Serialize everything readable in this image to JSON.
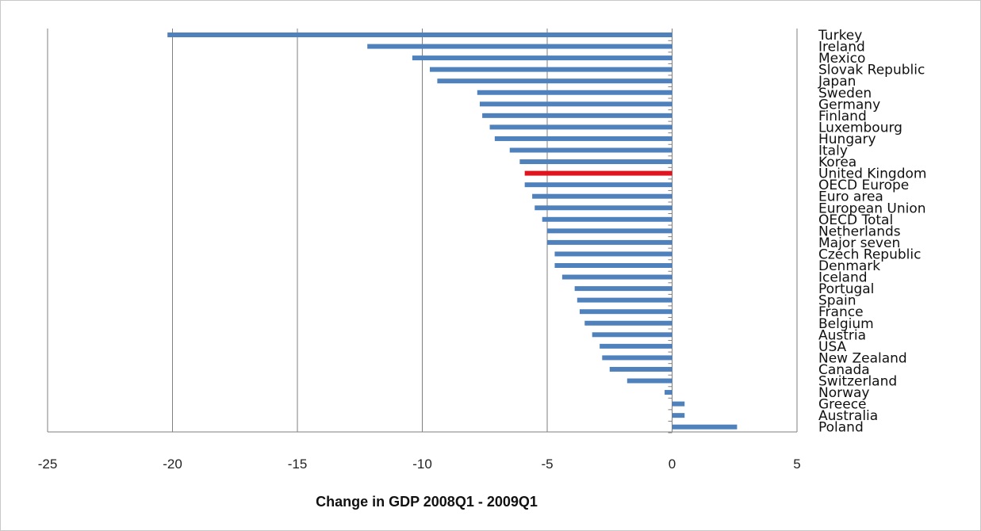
{
  "chart_data": {
    "type": "bar",
    "orientation": "horizontal",
    "title": "",
    "xlabel": "Change in GDP 2008Q1 - 2009Q1",
    "ylabel": "",
    "xlim": [
      -25,
      5
    ],
    "xticks": [
      -25,
      -20,
      -15,
      -10,
      -5,
      0,
      5
    ],
    "grid": "vertical",
    "legend": "none",
    "colors": {
      "default": "#4f81bd",
      "highlight": "#e0141e"
    },
    "highlight": "United Kingdom",
    "categories": [
      "Turkey",
      "Ireland",
      "Mexico",
      "Slovak Republic",
      "Japan",
      "Sweden",
      "Germany",
      "Finland",
      "Luxembourg",
      "Hungary",
      "Italy",
      "Korea",
      "United Kingdom",
      "OECD Europe",
      "Euro area",
      "European Union",
      "OECD Total",
      "Netherlands",
      "Major seven",
      "Czech Republic",
      "Denmark",
      "Iceland",
      "Portugal",
      "Spain",
      "France",
      "Belgium",
      "Austria",
      "USA",
      "New Zealand",
      "Canada",
      "Switzerland",
      "Norway",
      "Greece",
      "Australia",
      "Poland"
    ],
    "values": [
      -20.2,
      -12.2,
      -10.4,
      -9.7,
      -9.4,
      -7.8,
      -7.7,
      -7.6,
      -7.3,
      -7.1,
      -6.5,
      -6.1,
      -5.9,
      -5.9,
      -5.6,
      -5.5,
      -5.2,
      -5.0,
      -5.0,
      -4.7,
      -4.7,
      -4.4,
      -3.9,
      -3.8,
      -3.7,
      -3.5,
      -3.2,
      -2.9,
      -2.8,
      -2.5,
      -1.8,
      -0.3,
      0.5,
      0.5,
      2.6
    ]
  }
}
